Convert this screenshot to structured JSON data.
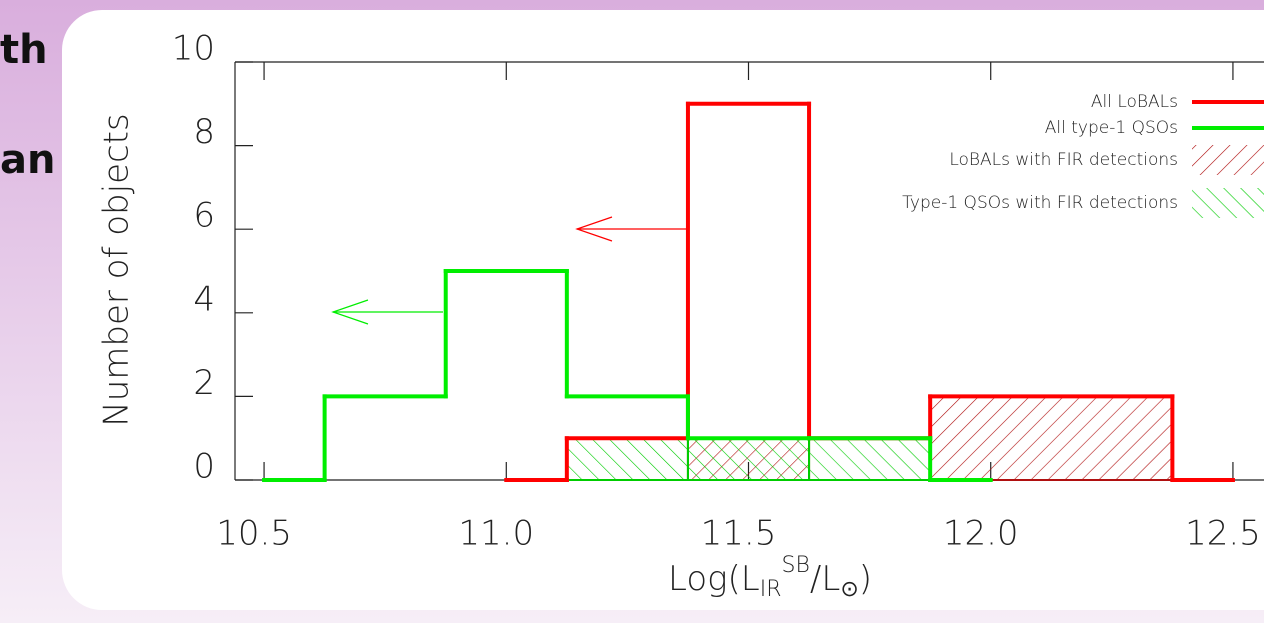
{
  "slide": {
    "fragments": [
      "th",
      "an"
    ]
  },
  "chart_data": {
    "type": "histogram",
    "ylabel": "Number of objects",
    "xlabel": [
      "Log(L",
      "IR",
      "SB",
      "/L",
      "⊙",
      ")"
    ],
    "xlim": [
      10.44,
      12.56
    ],
    "ylim": [
      0,
      10
    ],
    "xticks": [
      10.5,
      {
        "value": 11,
        "label": "11.0"
      },
      11.5,
      {
        "value": 12,
        "label": "12.0"
      },
      12.5
    ],
    "yticks": [
      0,
      2,
      4,
      6,
      8,
      10
    ],
    "legend": "upper right",
    "series": [
      {
        "name": "All LoBALs",
        "color": "#ff0000",
        "style": "step",
        "bins": [
          11.0,
          11.125,
          11.375,
          11.625,
          11.875,
          12.375,
          12.5
        ],
        "values": [
          0,
          1,
          9,
          1,
          2,
          0
        ]
      },
      {
        "name": "All type-1 QSOs",
        "color": "#00ee00",
        "style": "step",
        "bins": [
          10.5,
          10.625,
          10.875,
          11.125,
          11.375,
          11.625,
          11.875,
          12.0
        ],
        "values": [
          0,
          2,
          5,
          2,
          1,
          1,
          0
        ]
      },
      {
        "name": "LoBALs with FIR detections",
        "color": "#b01010",
        "style": "hatch",
        "bins": [
          11.375,
          11.625,
          11.875,
          12.375
        ],
        "values": [
          1,
          0,
          2
        ]
      },
      {
        "name": "Type-1 QSOs with FIR detections",
        "color": "#00cc00",
        "style": "hatch",
        "bins": [
          11.125,
          11.375,
          11.625,
          11.875
        ],
        "values": [
          1,
          1,
          1
        ]
      }
    ]
  }
}
